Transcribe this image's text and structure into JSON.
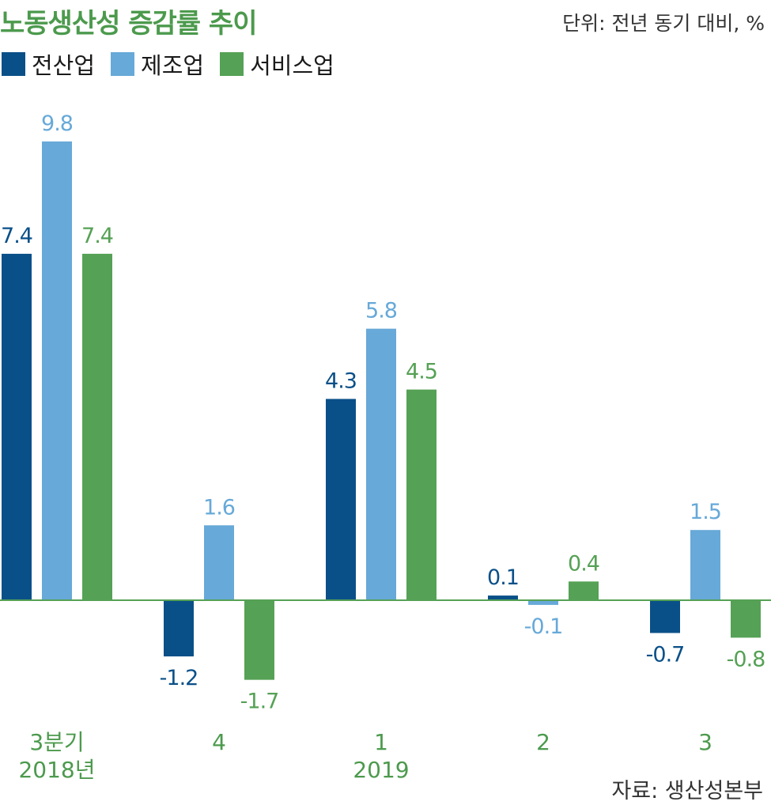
{
  "header": {
    "title": "노동생산성 증감률 추이",
    "unit": "단위: 전년 동기 대비, %"
  },
  "footer": {
    "source": "자료: 생산성본부"
  },
  "colors": {
    "series": [
      "#0a5088",
      "#67a9d8",
      "#55a155"
    ],
    "category": "#4c9a4d",
    "baseline": "#55a155"
  },
  "chart_data": {
    "type": "bar",
    "title": "노동생산성 증감률 추이",
    "unit": "단위: 전년 동기 대비, %",
    "categories": [
      "3분기\n2018년",
      "4",
      "1\n2019",
      "2",
      "3"
    ],
    "series": [
      {
        "name": "전산업",
        "color": "#0a5088",
        "values": [
          7.4,
          -1.2,
          4.3,
          0.1,
          -0.7
        ]
      },
      {
        "name": "제조업",
        "color": "#67a9d8",
        "values": [
          9.8,
          1.6,
          5.8,
          -0.1,
          1.5
        ]
      },
      {
        "name": "서비스업",
        "color": "#55a155",
        "values": [
          7.4,
          -1.7,
          4.5,
          0.4,
          -0.8
        ]
      }
    ],
    "value_labels": [
      [
        "7.4",
        "-1.2",
        "4.3",
        "0.1",
        "-0.7"
      ],
      [
        "9.8",
        "1.6",
        "5.8",
        "-0.1",
        "1.5"
      ],
      [
        "7.4",
        "-1.7",
        "4.5",
        "0.4",
        "-0.8"
      ]
    ],
    "ylim": [
      -2.5,
      10.5
    ],
    "grid": false,
    "legend": "top-left",
    "source": "자료: 생산성본부"
  }
}
